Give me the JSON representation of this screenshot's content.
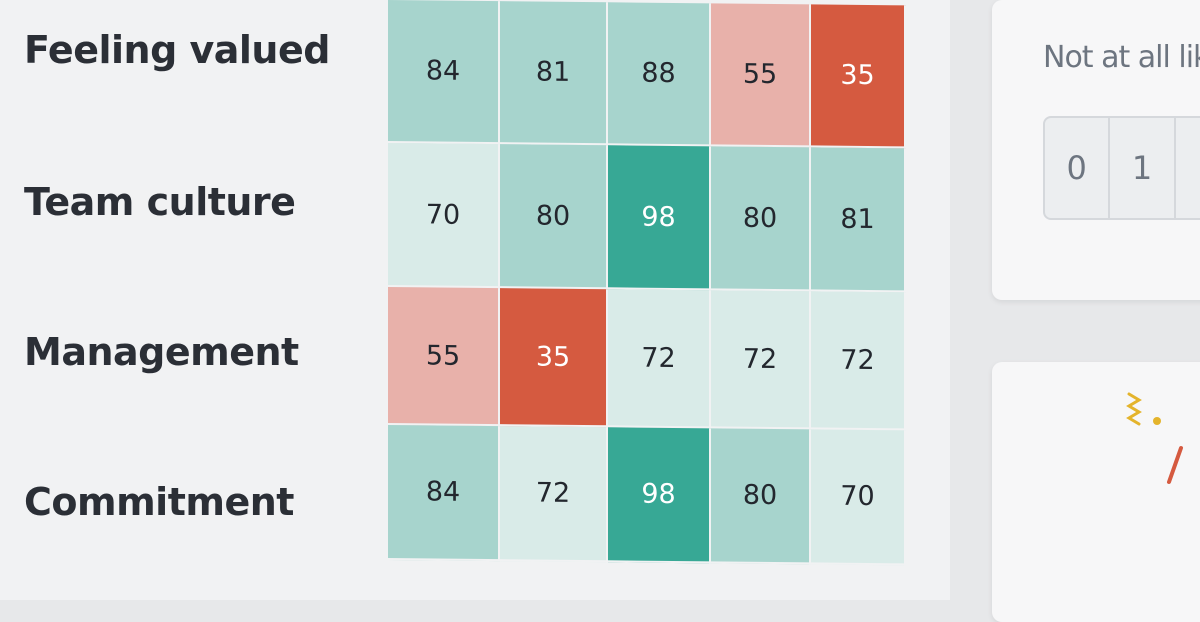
{
  "rows": [
    {
      "label": "Feeling valued",
      "values": [
        84,
        81,
        88,
        55,
        35
      ]
    },
    {
      "label": "Team culture",
      "values": [
        70,
        80,
        98,
        80,
        81
      ]
    },
    {
      "label": "Management",
      "values": [
        55,
        35,
        72,
        72,
        72
      ]
    },
    {
      "label": "Commitment",
      "values": [
        84,
        72,
        98,
        80,
        70
      ]
    }
  ],
  "colors": {
    "very_high": "#37a895",
    "high": "#a7d4cd",
    "medium": "#d9ebe8",
    "low": "#e8b1aa",
    "very_low": "#d55a40"
  },
  "side_panel": {
    "scale_caption": "Not at all likel",
    "scale_options": [
      "0",
      "1",
      ""
    ]
  },
  "icons": [
    "confetti-squiggle-icon",
    "confetti-dot-icon",
    "confetti-streak-icon"
  ]
}
